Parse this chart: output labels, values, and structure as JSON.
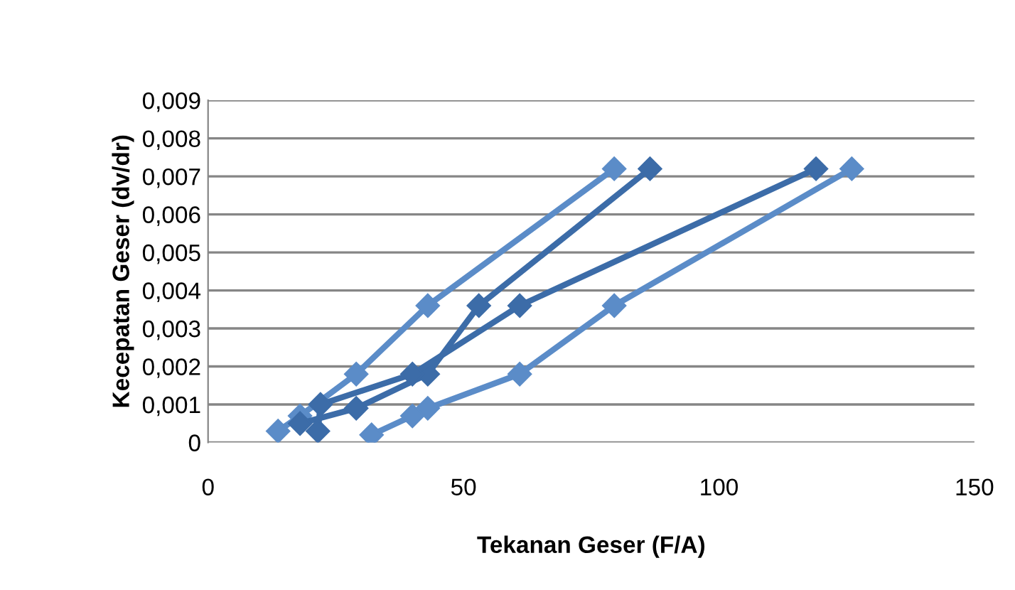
{
  "chart_data": {
    "type": "line",
    "xlabel": "Tekanan Geser (F/A)",
    "ylabel": "Kecepatan Geser (dv/dr)",
    "xlim": [
      0,
      150
    ],
    "xticks": [
      0,
      50,
      100,
      150
    ],
    "ylim": [
      0,
      0.009
    ],
    "yticks": [
      0,
      {
        "value": 0.001,
        "label": "0,001"
      },
      {
        "value": 0.002,
        "label": "0,002"
      },
      {
        "value": 0.003,
        "label": "0,003"
      },
      {
        "value": 0.004,
        "label": "0,004"
      },
      {
        "value": 0.005,
        "label": "0,005"
      },
      {
        "value": 0.006,
        "label": "0,006"
      },
      {
        "value": 0.007,
        "label": "0,007"
      },
      {
        "value": 0.008,
        "label": "0,008"
      },
      {
        "value": 0.009,
        "label": "0,009"
      }
    ],
    "grid": "y",
    "legend": false,
    "marker": "diamond",
    "line_style": "solid",
    "series": [
      {
        "color": "#5b8cc8",
        "x": [
          13.7,
          18,
          29,
          43,
          79.5
        ],
        "values": [
          0.0003,
          0.0007,
          0.0018,
          0.0036,
          0.0072
        ]
      },
      {
        "color": "#3c6ca8",
        "x": [
          86.5,
          53,
          43,
          29,
          18
        ],
        "values": [
          0.0072,
          0.0036,
          0.0018,
          0.0009,
          0.0005
        ]
      },
      {
        "color": "#5b8cc8",
        "x": [
          32,
          40,
          43,
          61,
          79.5,
          126
        ],
        "values": [
          0.0002,
          0.0007,
          0.0009,
          0.0018,
          0.0036,
          0.0072
        ]
      },
      {
        "color": "#3c6ca8",
        "x": [
          119,
          61,
          40,
          22,
          21.5
        ],
        "values": [
          0.0072,
          0.0036,
          0.0018,
          0.001,
          0.0003
        ]
      }
    ]
  }
}
